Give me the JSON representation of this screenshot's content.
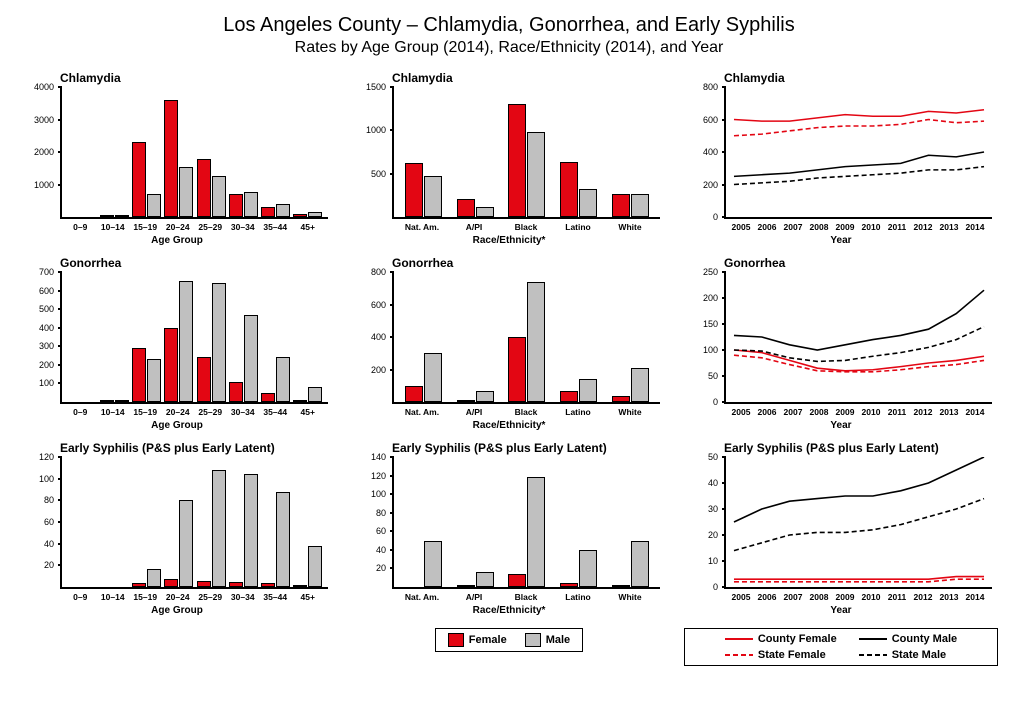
{
  "title": "Los Angeles County – Chlamydia, Gonorrhea, and Early Syphilis",
  "subtitle": "Rates by Age Group (2014), Race/Ethnicity (2014), and Year",
  "colors": {
    "female": "#e30613",
    "male": "#c0c0c0",
    "county_female": "#e30613",
    "county_male": "#000000",
    "state_female": "#e30613",
    "state_male": "#000000",
    "axis": "#000000",
    "background": "#ffffff"
  },
  "age_categories": [
    "0–9",
    "10–14",
    "15–19",
    "20–24",
    "25–29",
    "30–34",
    "35–44",
    "45+"
  ],
  "race_categories": [
    "Nat. Am.",
    "A/PI",
    "Black",
    "Latino",
    "White"
  ],
  "years": [
    "2005",
    "2006",
    "2007",
    "2008",
    "2009",
    "2010",
    "2011",
    "2012",
    "2013",
    "2014"
  ],
  "axis_labels": {
    "age": "Age Group",
    "race": "Race/Ethnicity*",
    "year": "Year"
  },
  "legend_bar": {
    "female": "Female",
    "male": "Male"
  },
  "legend_line": {
    "county_female": "County Female",
    "county_male": "County Male",
    "state_female": "State Female",
    "state_male": "State Male"
  },
  "panels": {
    "chl_age": {
      "title": "Chlamydia",
      "type": "bar",
      "ymax": 4000,
      "ytick_step": 1000,
      "female": [
        0,
        60,
        2300,
        3600,
        1800,
        700,
        300,
        80
      ],
      "male": [
        0,
        20,
        700,
        1550,
        1250,
        780,
        400,
        150
      ]
    },
    "gon_age": {
      "title": "Gonorrhea",
      "type": "bar",
      "ymax": 700,
      "ytick_step": 100,
      "female": [
        0,
        10,
        290,
        400,
        240,
        110,
        50,
        10
      ],
      "male": [
        0,
        8,
        230,
        650,
        640,
        470,
        240,
        80
      ]
    },
    "syp_age": {
      "title": "Early Syphilis (P&S plus Early Latent)",
      "type": "bar",
      "ymax": 120,
      "ytick_step": 20,
      "female": [
        0,
        0,
        4,
        7,
        6,
        5,
        4,
        2
      ],
      "male": [
        0,
        0,
        17,
        80,
        108,
        104,
        88,
        38
      ]
    },
    "chl_race": {
      "title": "Chlamydia",
      "type": "bar",
      "ymax": 1500,
      "ytick_step": 500,
      "female": [
        620,
        210,
        1300,
        640,
        260
      ],
      "male": [
        470,
        110,
        980,
        320,
        270
      ]
    },
    "gon_race": {
      "title": "Gonorrhea",
      "type": "bar",
      "ymax": 800,
      "ytick_step": 200,
      "female": [
        100,
        15,
        400,
        70,
        40
      ],
      "male": [
        300,
        65,
        740,
        140,
        210
      ]
    },
    "syp_race": {
      "title": "Early Syphilis (P&S plus Early Latent)",
      "type": "bar",
      "ymax": 140,
      "ytick_step": 20,
      "female": [
        0,
        1,
        14,
        4,
        2
      ],
      "male": [
        50,
        16,
        118,
        40,
        50
      ]
    },
    "chl_year": {
      "title": "Chlamydia",
      "type": "line",
      "ymax": 800,
      "ytick_step": 200,
      "county_female": [
        600,
        590,
        590,
        610,
        630,
        620,
        620,
        650,
        640,
        660
      ],
      "county_male": [
        250,
        260,
        270,
        290,
        310,
        320,
        330,
        380,
        370,
        400
      ],
      "state_female": [
        500,
        510,
        530,
        550,
        560,
        560,
        570,
        600,
        580,
        590
      ],
      "state_male": [
        200,
        210,
        220,
        240,
        250,
        260,
        270,
        290,
        290,
        310
      ]
    },
    "gon_year": {
      "title": "Gonorrhea",
      "type": "line",
      "ymax": 250,
      "ytick_step": 50,
      "county_female": [
        100,
        95,
        80,
        65,
        60,
        62,
        68,
        75,
        80,
        88
      ],
      "county_male": [
        128,
        125,
        110,
        100,
        110,
        120,
        128,
        140,
        170,
        215
      ],
      "state_female": [
        90,
        85,
        72,
        60,
        58,
        58,
        62,
        68,
        72,
        80
      ],
      "state_male": [
        100,
        98,
        85,
        78,
        80,
        88,
        95,
        105,
        120,
        145
      ]
    },
    "syp_year": {
      "title": "Early Syphilis (P&S plus Early Latent)",
      "type": "line",
      "ymax": 50,
      "ytick_step": 10,
      "county_female": [
        3,
        3,
        3,
        3,
        3,
        3,
        3,
        3,
        4,
        4
      ],
      "county_male": [
        25,
        30,
        33,
        34,
        35,
        35,
        37,
        40,
        45,
        50
      ],
      "state_female": [
        2,
        2,
        2,
        2,
        2,
        2,
        2,
        2,
        3,
        3
      ],
      "state_male": [
        14,
        17,
        20,
        21,
        21,
        22,
        24,
        27,
        30,
        34
      ]
    }
  }
}
